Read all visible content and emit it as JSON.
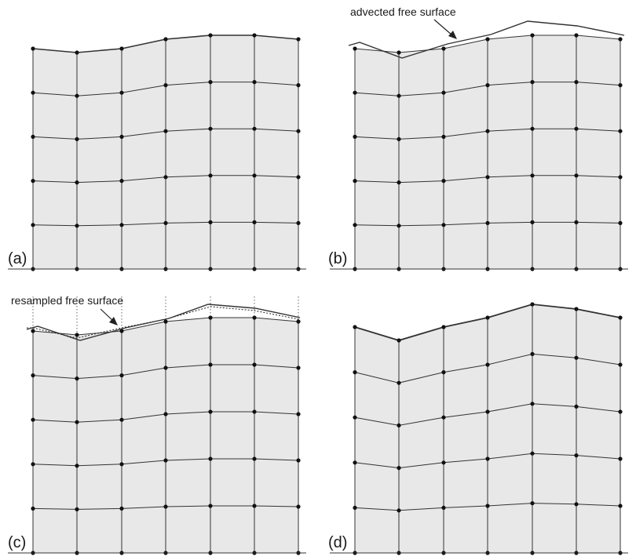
{
  "panels": [
    {
      "id": "a",
      "label": "(a)"
    },
    {
      "id": "b",
      "label": "(b)"
    },
    {
      "id": "c",
      "label": "(c)"
    },
    {
      "id": "d",
      "label": "(d)"
    }
  ],
  "annotations": {
    "advected": "advected free surface",
    "resampled": "resampled free surface"
  },
  "colors": {
    "mesh_fill": "#e8e8e8",
    "line": "#333333",
    "node": "#111111"
  }
}
